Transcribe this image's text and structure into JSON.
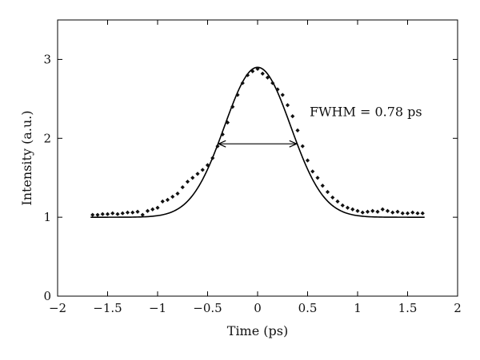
{
  "chart_data": {
    "type": "scatter",
    "title": "",
    "xlabel": "Time (ps)",
    "ylabel": "Intensity (a.u.)",
    "xlim": [
      -2,
      2
    ],
    "ylim": [
      0,
      3.5
    ],
    "xticks": [
      -2,
      -1.5,
      -1,
      -0.5,
      0,
      0.5,
      1,
      1.5,
      2
    ],
    "xtick_labels": [
      "−2",
      "−1.5",
      "−1",
      "−0.5",
      "0",
      "0.5",
      "1",
      "1.5",
      "2"
    ],
    "yticks": [
      0,
      1,
      2,
      3
    ],
    "ytick_labels": [
      "0",
      "1",
      "2",
      "3"
    ],
    "grid": false,
    "series": [
      {
        "kind": "points",
        "marker": "diamond",
        "color": "#111111",
        "x": [
          -1.65,
          -1.6,
          -1.55,
          -1.5,
          -1.45,
          -1.4,
          -1.35,
          -1.3,
          -1.25,
          -1.2,
          -1.15,
          -1.1,
          -1.05,
          -1.0,
          -0.95,
          -0.9,
          -0.85,
          -0.8,
          -0.75,
          -0.7,
          -0.65,
          -0.6,
          -0.55,
          -0.5,
          -0.45,
          -0.4,
          -0.35,
          -0.3,
          -0.25,
          -0.2,
          -0.15,
          -0.1,
          -0.05,
          0.0,
          0.05,
          0.1,
          0.15,
          0.2,
          0.25,
          0.3,
          0.35,
          0.4,
          0.45,
          0.5,
          0.55,
          0.6,
          0.65,
          0.7,
          0.75,
          0.8,
          0.85,
          0.9,
          0.95,
          1.0,
          1.05,
          1.1,
          1.15,
          1.2,
          1.25,
          1.3,
          1.35,
          1.4,
          1.45,
          1.5,
          1.55,
          1.6,
          1.65
        ],
        "y": [
          1.03,
          1.03,
          1.04,
          1.04,
          1.05,
          1.04,
          1.05,
          1.06,
          1.06,
          1.07,
          1.03,
          1.08,
          1.1,
          1.12,
          1.2,
          1.22,
          1.26,
          1.3,
          1.38,
          1.45,
          1.5,
          1.55,
          1.6,
          1.66,
          1.75,
          1.9,
          2.05,
          2.2,
          2.4,
          2.55,
          2.7,
          2.8,
          2.85,
          2.88,
          2.82,
          2.77,
          2.7,
          2.62,
          2.55,
          2.42,
          2.28,
          2.1,
          1.9,
          1.72,
          1.58,
          1.5,
          1.4,
          1.32,
          1.25,
          1.2,
          1.15,
          1.12,
          1.1,
          1.08,
          1.06,
          1.07,
          1.08,
          1.07,
          1.1,
          1.08,
          1.06,
          1.07,
          1.05,
          1.05,
          1.06,
          1.05,
          1.05
        ]
      },
      {
        "kind": "line",
        "color": "#000000",
        "function": "gaussian",
        "baseline": 1.0,
        "amplitude": 1.9,
        "center": 0,
        "fwhm_ps": 0.78,
        "x_range": [
          -1.67,
          1.67
        ]
      }
    ],
    "annotations": [
      {
        "text": "FWHM = 0.78 ps",
        "x": 0.52,
        "y": 2.28
      }
    ],
    "fwhm_arrow": {
      "x0": -0.39,
      "x1": 0.39,
      "y": 1.93
    }
  }
}
